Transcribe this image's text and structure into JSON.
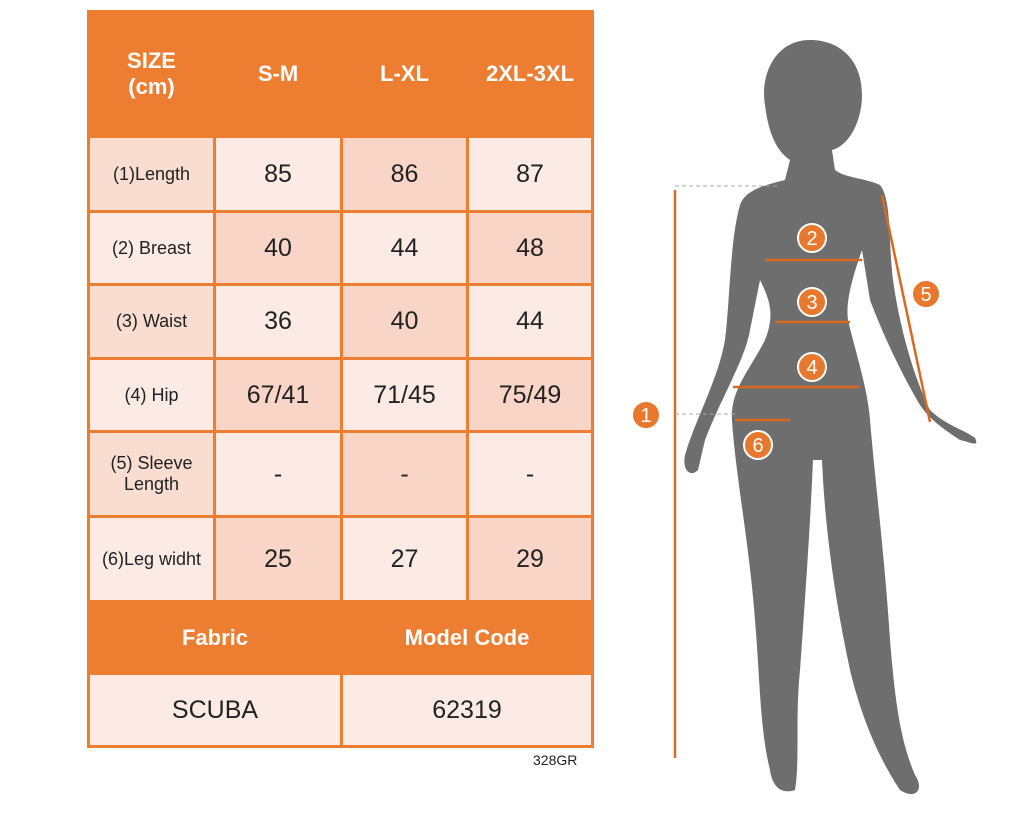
{
  "table": {
    "header": [
      "SIZE\n(cm)",
      "S-M",
      "L-XL",
      "2XL-3XL"
    ],
    "rows": [
      [
        "(1)Length",
        "85",
        "86",
        "87"
      ],
      [
        "(2) Breast",
        "40",
        "44",
        "48"
      ],
      [
        "(3) Waist",
        "36",
        "40",
        "44"
      ],
      [
        "(4) Hip",
        "67/41",
        "71/45",
        "75/49"
      ],
      [
        "(5) Sleeve Length",
        "-",
        "-",
        "-"
      ],
      [
        "(6)Leg widht",
        "25",
        "27",
        "29"
      ]
    ],
    "footer_header": [
      "Fabric",
      "Model Code"
    ],
    "footer_values": [
      "SCUBA",
      "62319"
    ]
  },
  "code": "328GR",
  "diagram": {
    "labels": [
      "1",
      "2",
      "3",
      "4",
      "5",
      "6"
    ]
  }
}
